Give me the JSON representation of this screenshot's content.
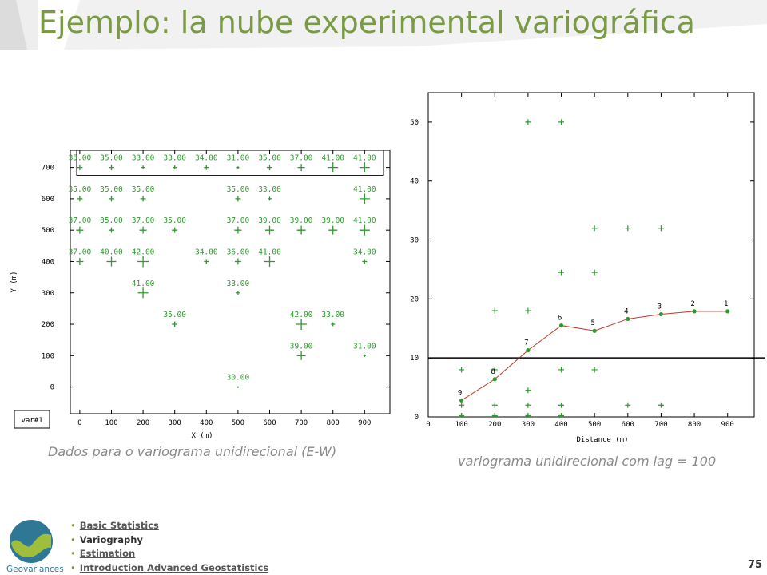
{
  "slide": {
    "title": "Ejemplo: la nube experimental variográfica",
    "page_number": "75",
    "accent_color": "#7a9a45"
  },
  "captions": {
    "left": "Dados para o variograma unidirecional (E-W)",
    "right": "variograma unidirecional com lag = 100"
  },
  "nav": [
    {
      "label": "Basic Statistics",
      "link": true
    },
    {
      "label": "Variography",
      "link": false
    },
    {
      "label": "Estimation",
      "link": true
    },
    {
      "label": "Introduction Advanced Geostatistics",
      "link": true
    }
  ],
  "logo": {
    "text": "Geovariances"
  },
  "chart_data": [
    {
      "type": "scatter",
      "title": "",
      "xlabel": "X (m)",
      "ylabel": "Y (m)",
      "xlim": [
        -30,
        980
      ],
      "ylim": [
        -85,
        755
      ],
      "xticks": [
        0,
        100,
        200,
        300,
        400,
        500,
        600,
        700,
        800,
        900
      ],
      "yticks": [
        0,
        100,
        200,
        300,
        400,
        500,
        600,
        700
      ],
      "variable_label": "var#1",
      "marker": "plus",
      "color": "#2e9a2e",
      "highlight_row_y": 700,
      "points": [
        {
          "x": 0,
          "y": 700,
          "label": "35.00",
          "v": 35
        },
        {
          "x": 100,
          "y": 700,
          "label": "35.00",
          "v": 35
        },
        {
          "x": 200,
          "y": 700,
          "label": "33.00",
          "v": 33
        },
        {
          "x": 300,
          "y": 700,
          "label": "33.00",
          "v": 33
        },
        {
          "x": 400,
          "y": 700,
          "label": "34.00",
          "v": 34
        },
        {
          "x": 500,
          "y": 700,
          "label": "31.00",
          "v": 31
        },
        {
          "x": 600,
          "y": 700,
          "label": "35.00",
          "v": 35
        },
        {
          "x": 700,
          "y": 700,
          "label": "37.00",
          "v": 37
        },
        {
          "x": 800,
          "y": 700,
          "label": "41.00",
          "v": 41
        },
        {
          "x": 900,
          "y": 700,
          "label": "41.00",
          "v": 41
        },
        {
          "x": 0,
          "y": 600,
          "label": "35.00",
          "v": 35
        },
        {
          "x": 100,
          "y": 600,
          "label": "35.00",
          "v": 35
        },
        {
          "x": 200,
          "y": 600,
          "label": "35.00",
          "v": 35
        },
        {
          "x": 500,
          "y": 600,
          "label": "35.00",
          "v": 35
        },
        {
          "x": 600,
          "y": 600,
          "label": "33.00",
          "v": 33
        },
        {
          "x": 900,
          "y": 600,
          "label": "41.00",
          "v": 41
        },
        {
          "x": 0,
          "y": 500,
          "label": "37.00",
          "v": 37
        },
        {
          "x": 100,
          "y": 500,
          "label": "35.00",
          "v": 35
        },
        {
          "x": 200,
          "y": 500,
          "label": "37.00",
          "v": 37
        },
        {
          "x": 300,
          "y": 500,
          "label": "35.00",
          "v": 35
        },
        {
          "x": 500,
          "y": 500,
          "label": "37.00",
          "v": 37
        },
        {
          "x": 600,
          "y": 500,
          "label": "39.00",
          "v": 39
        },
        {
          "x": 700,
          "y": 500,
          "label": "39.00",
          "v": 39
        },
        {
          "x": 800,
          "y": 500,
          "label": "39.00",
          "v": 39
        },
        {
          "x": 900,
          "y": 500,
          "label": "41.00",
          "v": 41
        },
        {
          "x": 0,
          "y": 400,
          "label": "37.00",
          "v": 37
        },
        {
          "x": 100,
          "y": 400,
          "label": "40.00",
          "v": 40
        },
        {
          "x": 200,
          "y": 400,
          "label": "42.00",
          "v": 42
        },
        {
          "x": 400,
          "y": 400,
          "label": "34.00",
          "v": 34
        },
        {
          "x": 500,
          "y": 400,
          "label": "36.00",
          "v": 36
        },
        {
          "x": 600,
          "y": 400,
          "label": "41.00",
          "v": 41
        },
        {
          "x": 900,
          "y": 400,
          "label": "34.00",
          "v": 34
        },
        {
          "x": 200,
          "y": 300,
          "label": "41.00",
          "v": 41
        },
        {
          "x": 500,
          "y": 300,
          "label": "33.00",
          "v": 33
        },
        {
          "x": 300,
          "y": 200,
          "label": "35.00",
          "v": 35
        },
        {
          "x": 700,
          "y": 200,
          "label": "42.00",
          "v": 42
        },
        {
          "x": 800,
          "y": 200,
          "label": "33.00",
          "v": 33
        },
        {
          "x": 700,
          "y": 100,
          "label": "39.00",
          "v": 39
        },
        {
          "x": 900,
          "y": 100,
          "label": "31.00",
          "v": 31
        },
        {
          "x": 500,
          "y": 0,
          "label": "30.00",
          "v": 30
        }
      ]
    },
    {
      "type": "scatter",
      "title": "",
      "xlabel": "Distance (m)",
      "ylabel": "",
      "xlim": [
        0,
        980
      ],
      "ylim": [
        0,
        55
      ],
      "xticks": [
        0,
        100,
        200,
        300,
        400,
        500,
        600,
        700,
        800,
        900
      ],
      "yticks": [
        0,
        10,
        20,
        30,
        40,
        50
      ],
      "reference_line_y": 10,
      "cloud_color": "#2e9a2e",
      "curve_color": "#c0392b",
      "cloud": [
        {
          "x": 100,
          "y": 2
        },
        {
          "x": 100,
          "y": 8
        },
        {
          "x": 100,
          "y": 0.2
        },
        {
          "x": 200,
          "y": 2
        },
        {
          "x": 200,
          "y": 8
        },
        {
          "x": 200,
          "y": 18
        },
        {
          "x": 200,
          "y": 0.2
        },
        {
          "x": 300,
          "y": 2
        },
        {
          "x": 300,
          "y": 4.5
        },
        {
          "x": 300,
          "y": 18
        },
        {
          "x": 300,
          "y": 50
        },
        {
          "x": 300,
          "y": 0.2
        },
        {
          "x": 400,
          "y": 2
        },
        {
          "x": 400,
          "y": 8
        },
        {
          "x": 400,
          "y": 24.5
        },
        {
          "x": 400,
          "y": 50
        },
        {
          "x": 400,
          "y": 0.2
        },
        {
          "x": 500,
          "y": 8
        },
        {
          "x": 500,
          "y": 24.5
        },
        {
          "x": 500,
          "y": 32
        },
        {
          "x": 600,
          "y": 2
        },
        {
          "x": 600,
          "y": 32
        },
        {
          "x": 700,
          "y": 2
        },
        {
          "x": 700,
          "y": 32
        }
      ],
      "experimental": [
        {
          "x": 100,
          "y": 2.8,
          "label": "9"
        },
        {
          "x": 200,
          "y": 6.4,
          "label": "8"
        },
        {
          "x": 300,
          "y": 11.3,
          "label": "7"
        },
        {
          "x": 400,
          "y": 15.5,
          "label": "6"
        },
        {
          "x": 500,
          "y": 14.6,
          "label": "5"
        },
        {
          "x": 600,
          "y": 16.6,
          "label": "4"
        },
        {
          "x": 700,
          "y": 17.4,
          "label": "3"
        },
        {
          "x": 800,
          "y": 17.9,
          "label": "2"
        },
        {
          "x": 900,
          "y": 17.9,
          "label": "1"
        }
      ]
    }
  ]
}
